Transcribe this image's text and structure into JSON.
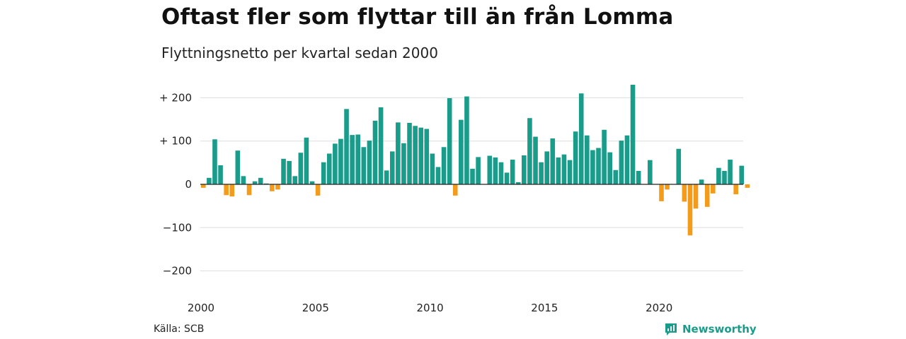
{
  "title": "Oftast fler som flyttar till än från Lomma",
  "subtitle": "Flyttningsnetto per kvartal sedan 2000",
  "source": "Källa: SCB",
  "brand": {
    "name": "Newsworthy",
    "icon": "newsworthy-logo-icon",
    "color": "#1a9c8a"
  },
  "colors": {
    "positive": "#1a9c8a",
    "negative": "#f39c1b",
    "grid": "#dddddd",
    "zero": "#222222"
  },
  "chart_data": {
    "type": "bar",
    "title": "Oftast fler som flyttar till än från Lomma",
    "subtitle": "Flyttningsnetto per kvartal sedan 2000",
    "xlabel": "",
    "ylabel": "",
    "ylim": [
      -200,
      230
    ],
    "grid": true,
    "y_ticks": [
      200,
      100,
      0,
      -100,
      -200
    ],
    "y_tick_labels": [
      "+ 200",
      "+ 100",
      "0",
      "−100",
      "−200"
    ],
    "x_tick_labels": [
      "2000",
      "2005",
      "2010",
      "2015",
      "2020"
    ],
    "x_tick_quarter_index": [
      0,
      20,
      40,
      60,
      80
    ],
    "start": "2000 Q1",
    "values": [
      -8,
      15,
      104,
      44,
      -25,
      -28,
      78,
      19,
      -25,
      7,
      15,
      2,
      -16,
      -12,
      59,
      54,
      19,
      73,
      108,
      7,
      -26,
      51,
      71,
      94,
      105,
      174,
      114,
      115,
      86,
      101,
      147,
      178,
      32,
      76,
      143,
      95,
      142,
      135,
      131,
      128,
      71,
      40,
      86,
      199,
      -26,
      149,
      203,
      36,
      63,
      0,
      66,
      62,
      51,
      27,
      57,
      5,
      67,
      153,
      110,
      51,
      76,
      106,
      62,
      69,
      56,
      122,
      210,
      113,
      79,
      84,
      126,
      74,
      33,
      101,
      113,
      230,
      31,
      0,
      56,
      0,
      -39,
      -12,
      0,
      82,
      -40,
      -118,
      -56,
      11,
      -52,
      -21,
      38,
      31,
      57,
      -23,
      43,
      -8
    ]
  }
}
